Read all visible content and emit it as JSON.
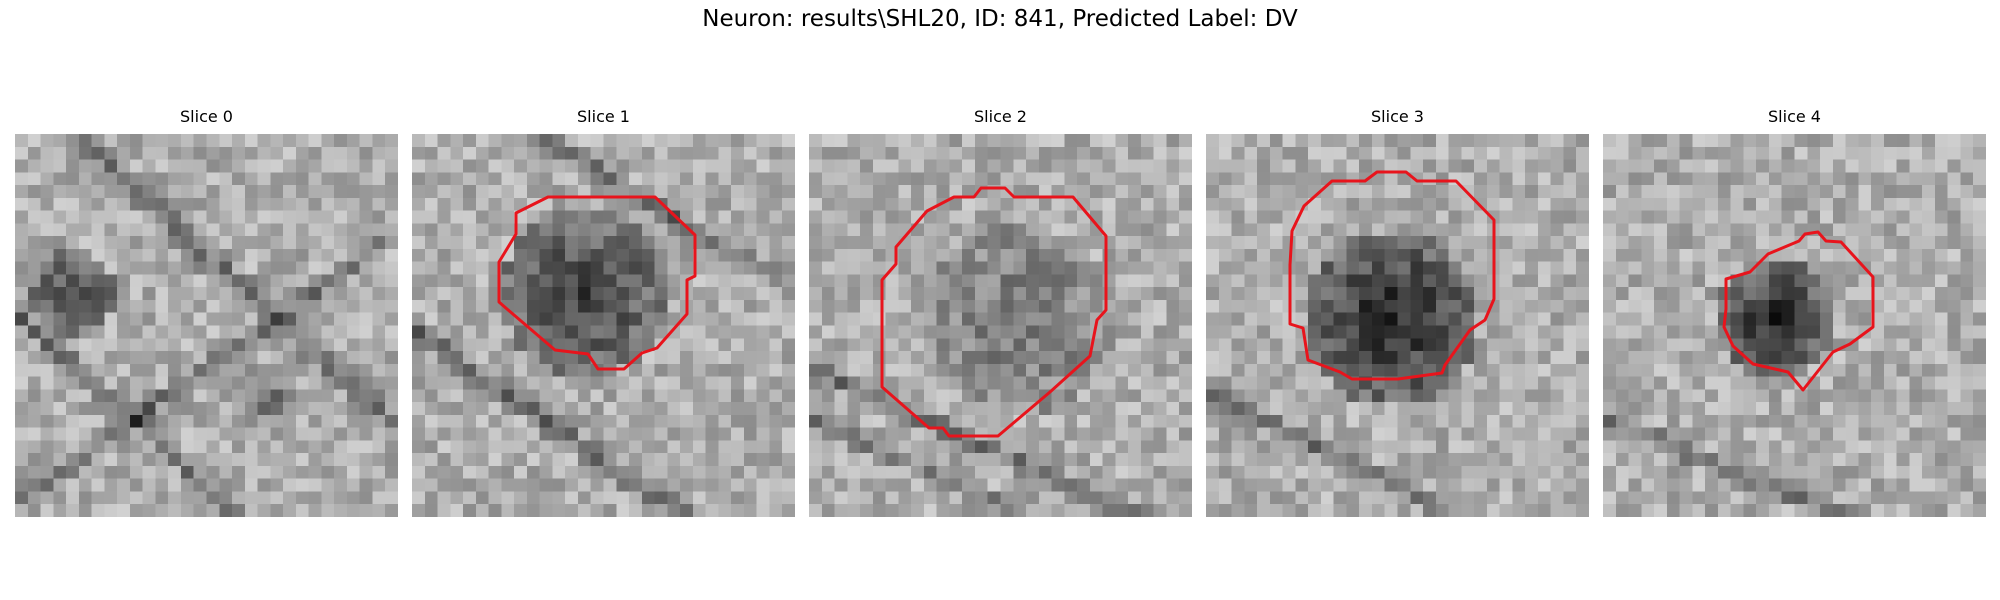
{
  "figure": {
    "title": "Neuron: results\\SHL20, ID: 841, Predicted Label: DV",
    "colors": {
      "contour": "#e8141c",
      "background": "#ffffff"
    },
    "colormap": "grayscale"
  },
  "slices": [
    {
      "label": "Slice 0",
      "has_contour": false
    },
    {
      "label": "Slice 1",
      "has_contour": true
    },
    {
      "label": "Slice 2",
      "has_contour": true
    },
    {
      "label": "Slice 3",
      "has_contour": true
    },
    {
      "label": "Slice 4",
      "has_contour": true
    }
  ]
}
